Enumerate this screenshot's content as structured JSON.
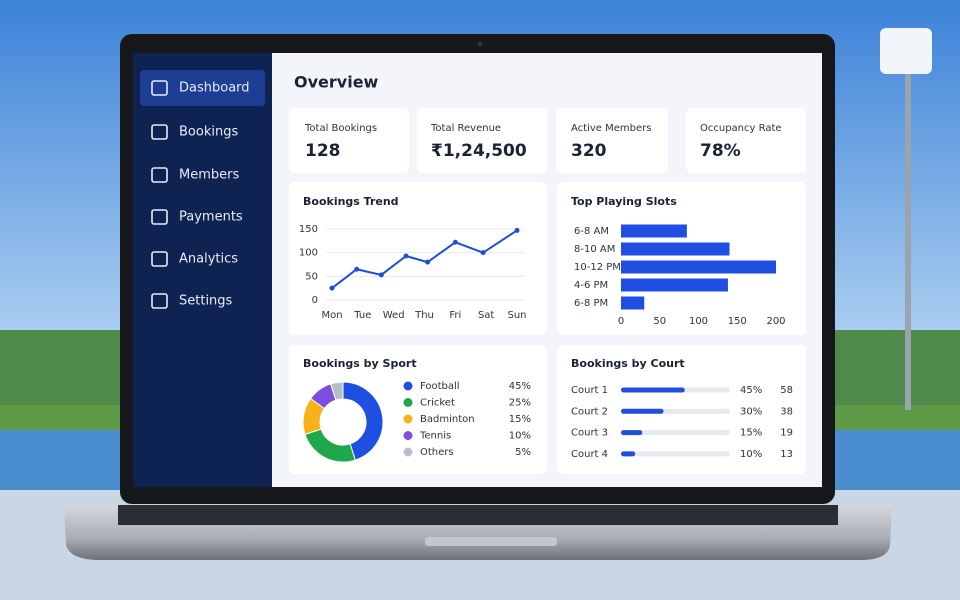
{
  "sidebar": {
    "items": [
      "Dashboard",
      "Bookings",
      "Members",
      "Payments",
      "Analytics",
      "Settings"
    ]
  },
  "header": {
    "title": "Overview"
  },
  "kpis": [
    {
      "label": "Total Bookings",
      "value": "128"
    },
    {
      "label": "Total Revenue",
      "value": "₹1,24,500"
    },
    {
      "label": "Active Members",
      "value": "320"
    },
    {
      "label": "Occupancy Rate",
      "value": "78%"
    }
  ],
  "chart_data": [
    {
      "type": "line",
      "title": "Bookings Trend",
      "x": [
        0,
        0.8,
        1.6,
        2.4,
        3.1,
        4,
        4.9,
        6
      ],
      "values": [
        25,
        65,
        53,
        93,
        80,
        122,
        100,
        147
      ],
      "color": "#1f4fd8",
      "xlim": [
        0,
        6
      ],
      "xticks": [
        {
          "value": 0,
          "label": "Mon"
        },
        {
          "value": 1,
          "label": "Tue"
        },
        {
          "value": 2,
          "label": "Wed"
        },
        {
          "value": 3,
          "label": "Thu"
        },
        {
          "value": 4,
          "label": "Fri"
        },
        {
          "value": 5,
          "label": "Sat"
        },
        {
          "value": 6,
          "label": "Sun"
        }
      ],
      "ylim": [
        0,
        150
      ],
      "yticks": [
        0,
        50,
        100,
        150
      ],
      "grid": true
    },
    {
      "type": "hbar",
      "title": "Top Playing Slots",
      "categories": [
        "6-8 AM",
        "8-10 AM",
        "10-12 PM",
        "4-6 PM",
        "6-8 PM"
      ],
      "values": [
        85,
        140,
        200,
        138,
        30
      ],
      "color": "#1f4fe0",
      "xlim": [
        0,
        200
      ],
      "xticks": [
        0,
        50,
        100,
        150,
        200
      ]
    },
    {
      "type": "donut",
      "title": "Bookings by Sport",
      "categories": [
        "Football",
        "Cricket",
        "Badminton",
        "Tennis",
        "Others"
      ],
      "values": [
        45,
        25,
        15,
        10,
        5
      ],
      "value_labels": [
        "45%",
        "25%",
        "15%",
        "10%",
        "5%"
      ],
      "colors": [
        "#1f4fe0",
        "#1fa84a",
        "#f5b21a",
        "#7b4de0",
        "#b9bfc8"
      ]
    },
    {
      "type": "progress",
      "title": "Bookings by Court",
      "categories": [
        "Court 1",
        "Court 2",
        "Court 3",
        "Court 4"
      ],
      "values": [
        45,
        30,
        15,
        10
      ],
      "value_labels": [
        "45%",
        "30%",
        "15%",
        "10%"
      ],
      "counts": [
        58,
        38,
        19,
        13
      ],
      "color": "#1f4fe0"
    }
  ]
}
